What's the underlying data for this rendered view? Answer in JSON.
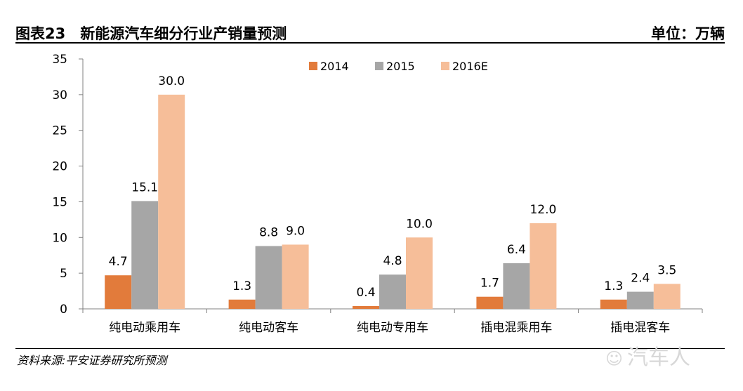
{
  "header": {
    "title": "图表23　新能源汽车细分行业产销量预测",
    "unit": "单位：万辆"
  },
  "footer": {
    "source": "资料来源:平安证券研究所预测",
    "watermark_text": "汽车人",
    "watermark_icon": "wechat-icon"
  },
  "chart_data": {
    "type": "bar",
    "categories": [
      "纯电动乘用车",
      "纯电动客车",
      "纯电动专用车",
      "插电混乘用车",
      "插电混客车"
    ],
    "series": [
      {
        "name": "2014",
        "values": [
          4.7,
          1.3,
          0.4,
          1.7,
          1.3
        ],
        "labels": [
          "4.7",
          "1.3",
          "0.4",
          "1.7",
          "1.3"
        ],
        "color": "#e27b3b"
      },
      {
        "name": "2015",
        "values": [
          15.1,
          8.8,
          4.8,
          6.4,
          2.4
        ],
        "labels": [
          "15.1",
          "8.8",
          "4.8",
          "6.4",
          "2.4"
        ],
        "color": "#a6a6a6"
      },
      {
        "name": "2016E",
        "values": [
          30.0,
          9.0,
          10.0,
          12.0,
          3.5
        ],
        "labels": [
          "30.0",
          "9.0",
          "10.0",
          "12.0",
          "3.5"
        ],
        "color": "#f6be99"
      }
    ],
    "ylim": [
      0,
      35
    ],
    "yticks": [
      0,
      5,
      10,
      15,
      20,
      25,
      30,
      35
    ],
    "xlabel": "",
    "ylabel": "",
    "grid": false,
    "legend_position": "top-center"
  }
}
